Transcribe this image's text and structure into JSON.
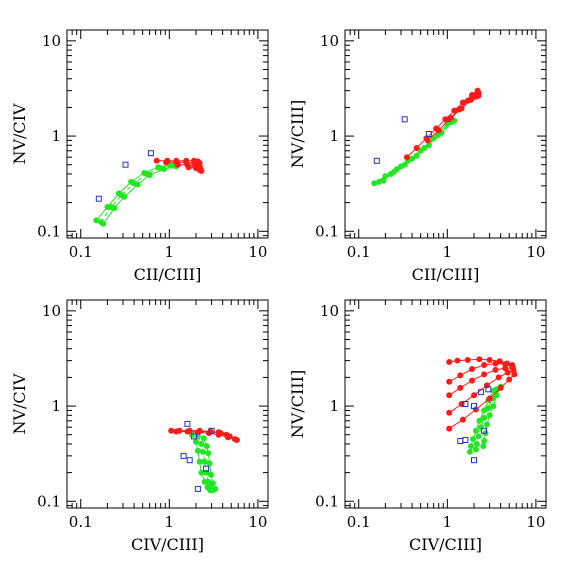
{
  "chart_data": [
    {
      "type": "scatter",
      "xlabel": "CII/CIII]",
      "ylabel": "NV/CIV",
      "xscale": "log",
      "yscale": "log",
      "xlim": [
        0.07,
        13
      ],
      "ylim": [
        0.085,
        13
      ],
      "xticks": [
        {
          "v": 0.1,
          "label": "0.1"
        },
        {
          "v": 1,
          "label": "1"
        },
        {
          "v": 10,
          "label": "10"
        }
      ],
      "yticks": [
        {
          "v": 0.1,
          "label": "0.1"
        },
        {
          "v": 1,
          "label": "1"
        },
        {
          "v": 10,
          "label": "10"
        }
      ],
      "observed": [
        [
          0.16,
          0.22
        ],
        [
          0.32,
          0.5
        ],
        [
          0.62,
          0.66
        ]
      ],
      "red_tracks": [
        [
          [
            0.72,
            0.55
          ],
          [
            0.95,
            0.55
          ],
          [
            1.2,
            0.55
          ],
          [
            1.55,
            0.55
          ],
          [
            1.9,
            0.55
          ],
          [
            2.1,
            0.54
          ],
          [
            2.2,
            0.52
          ]
        ],
        [
          [
            0.92,
            0.53
          ],
          [
            1.2,
            0.53
          ],
          [
            1.55,
            0.53
          ],
          [
            1.9,
            0.52
          ],
          [
            2.1,
            0.5
          ],
          [
            2.2,
            0.48
          ]
        ],
        [
          [
            1.25,
            0.5
          ],
          [
            1.6,
            0.5
          ],
          [
            1.95,
            0.49
          ],
          [
            2.15,
            0.47
          ],
          [
            2.25,
            0.45
          ]
        ],
        [
          [
            1.65,
            0.47
          ],
          [
            2.0,
            0.46
          ],
          [
            2.2,
            0.44
          ],
          [
            2.3,
            0.43
          ]
        ]
      ],
      "green_tracks": [
        [
          [
            0.15,
            0.13
          ],
          [
            0.2,
            0.18
          ],
          [
            0.27,
            0.25
          ],
          [
            0.37,
            0.33
          ],
          [
            0.52,
            0.41
          ],
          [
            0.75,
            0.47
          ],
          [
            1.0,
            0.5
          ]
        ],
        [
          [
            0.17,
            0.125
          ],
          [
            0.22,
            0.18
          ],
          [
            0.29,
            0.24
          ],
          [
            0.4,
            0.32
          ],
          [
            0.56,
            0.4
          ],
          [
            0.8,
            0.46
          ],
          [
            1.1,
            0.49
          ]
        ],
        [
          [
            0.18,
            0.12
          ],
          [
            0.24,
            0.175
          ],
          [
            0.31,
            0.23
          ],
          [
            0.44,
            0.31
          ],
          [
            0.6,
            0.39
          ],
          [
            0.87,
            0.45
          ],
          [
            1.2,
            0.48
          ]
        ]
      ]
    },
    {
      "type": "scatter",
      "xlabel": "CII/CIII]",
      "ylabel": "NV/CIII]",
      "xscale": "log",
      "yscale": "log",
      "xlim": [
        0.07,
        13
      ],
      "ylim": [
        0.085,
        13
      ],
      "xticks": [
        {
          "v": 0.1,
          "label": "0.1"
        },
        {
          "v": 1,
          "label": "1"
        },
        {
          "v": 10,
          "label": "10"
        }
      ],
      "yticks": [
        {
          "v": 0.1,
          "label": "0.1"
        },
        {
          "v": 1,
          "label": "1"
        },
        {
          "v": 10,
          "label": "10"
        }
      ],
      "observed": [
        [
          0.16,
          0.55
        ],
        [
          0.33,
          1.5
        ],
        [
          0.62,
          1.05
        ]
      ],
      "red_tracks": [
        [
          [
            0.35,
            0.6
          ],
          [
            0.45,
            0.75
          ],
          [
            0.58,
            0.95
          ],
          [
            0.75,
            1.2
          ],
          [
            0.95,
            1.5
          ],
          [
            1.2,
            1.85
          ],
          [
            1.5,
            2.25
          ],
          [
            1.9,
            2.7
          ],
          [
            2.2,
            3.0
          ]
        ],
        [
          [
            0.6,
            0.9
          ],
          [
            0.8,
            1.15
          ],
          [
            1.05,
            1.5
          ],
          [
            1.35,
            1.9
          ],
          [
            1.7,
            2.35
          ],
          [
            2.05,
            2.7
          ],
          [
            2.25,
            2.85
          ]
        ],
        [
          [
            1.1,
            1.55
          ],
          [
            1.45,
            1.95
          ],
          [
            1.85,
            2.4
          ],
          [
            2.2,
            2.65
          ]
        ],
        [
          [
            1.9,
            2.5
          ],
          [
            2.1,
            2.6
          ],
          [
            2.25,
            2.65
          ]
        ]
      ],
      "green_tracks": [
        [
          [
            0.15,
            0.32
          ],
          [
            0.2,
            0.38
          ],
          [
            0.27,
            0.45
          ],
          [
            0.36,
            0.55
          ],
          [
            0.5,
            0.7
          ],
          [
            0.7,
            0.95
          ],
          [
            1.0,
            1.35
          ]
        ],
        [
          [
            0.17,
            0.33
          ],
          [
            0.23,
            0.4
          ],
          [
            0.3,
            0.48
          ],
          [
            0.4,
            0.58
          ],
          [
            0.55,
            0.75
          ],
          [
            0.78,
            1.02
          ],
          [
            1.1,
            1.4
          ]
        ],
        [
          [
            0.19,
            0.34
          ],
          [
            0.25,
            0.42
          ],
          [
            0.33,
            0.5
          ],
          [
            0.45,
            0.62
          ],
          [
            0.62,
            0.8
          ],
          [
            0.86,
            1.08
          ],
          [
            1.2,
            1.45
          ]
        ]
      ]
    },
    {
      "type": "scatter",
      "xlabel": "CIV/CIII]",
      "ylabel": "NV/CIV",
      "xscale": "log",
      "yscale": "log",
      "xlim": [
        0.07,
        13
      ],
      "ylim": [
        0.085,
        13
      ],
      "xticks": [
        {
          "v": 0.1,
          "label": "0.1"
        },
        {
          "v": 1,
          "label": "1"
        },
        {
          "v": 10,
          "label": "10"
        }
      ],
      "yticks": [
        {
          "v": 0.1,
          "label": "0.1"
        },
        {
          "v": 1,
          "label": "1"
        },
        {
          "v": 10,
          "label": "10"
        }
      ],
      "observed": [
        [
          1.6,
          0.65
        ],
        [
          1.9,
          0.48
        ],
        [
          2.6,
          0.22
        ],
        [
          1.45,
          0.3
        ],
        [
          1.7,
          0.27
        ],
        [
          2.1,
          0.135
        ],
        [
          3.0,
          0.55
        ]
      ],
      "red_tracks": [
        [
          [
            1.05,
            0.55
          ],
          [
            1.3,
            0.55
          ],
          [
            1.7,
            0.55
          ],
          [
            2.2,
            0.55
          ],
          [
            2.9,
            0.54
          ],
          [
            3.8,
            0.52
          ],
          [
            4.8,
            0.48
          ],
          [
            5.8,
            0.44
          ]
        ],
        [
          [
            1.2,
            0.54
          ],
          [
            1.6,
            0.54
          ],
          [
            2.1,
            0.53
          ],
          [
            2.8,
            0.52
          ],
          [
            3.6,
            0.5
          ],
          [
            4.6,
            0.47
          ],
          [
            5.5,
            0.45
          ]
        ],
        [
          [
            2.2,
            0.54
          ],
          [
            2.9,
            0.54
          ],
          [
            3.6,
            0.53
          ],
          [
            4.4,
            0.5
          ]
        ]
      ],
      "green_tracks": [
        [
          [
            1.8,
            0.5
          ],
          [
            2.0,
            0.42
          ],
          [
            2.1,
            0.34
          ],
          [
            2.2,
            0.26
          ],
          [
            2.3,
            0.2
          ],
          [
            2.5,
            0.16
          ],
          [
            2.7,
            0.14
          ],
          [
            2.9,
            0.13
          ]
        ],
        [
          [
            2.1,
            0.48
          ],
          [
            2.3,
            0.4
          ],
          [
            2.4,
            0.33
          ],
          [
            2.5,
            0.26
          ],
          [
            2.6,
            0.2
          ],
          [
            2.75,
            0.16
          ],
          [
            2.9,
            0.14
          ],
          [
            3.1,
            0.13
          ]
        ],
        [
          [
            2.45,
            0.46
          ],
          [
            2.65,
            0.38
          ],
          [
            2.75,
            0.32
          ],
          [
            2.85,
            0.25
          ],
          [
            2.95,
            0.19
          ],
          [
            3.1,
            0.155
          ],
          [
            3.3,
            0.135
          ]
        ]
      ]
    },
    {
      "type": "scatter",
      "xlabel": "CIV/CIII]",
      "ylabel": "NV/CIII]",
      "xscale": "log",
      "yscale": "log",
      "xlim": [
        0.07,
        13
      ],
      "ylim": [
        0.085,
        13
      ],
      "xticks": [
        {
          "v": 0.1,
          "label": "0.1"
        },
        {
          "v": 1,
          "label": "1"
        },
        {
          "v": 10,
          "label": "10"
        }
      ],
      "yticks": [
        {
          "v": 0.1,
          "label": "0.1"
        },
        {
          "v": 1,
          "label": "1"
        },
        {
          "v": 10,
          "label": "10"
        }
      ],
      "observed": [
        [
          1.6,
          1.05
        ],
        [
          2.0,
          1.0
        ],
        [
          2.4,
          1.4
        ],
        [
          2.9,
          1.5
        ],
        [
          2.6,
          0.55
        ],
        [
          1.4,
          0.43
        ],
        [
          1.6,
          0.44
        ],
        [
          2.0,
          0.27
        ]
      ],
      "red_tracks": [
        [
          [
            1.05,
            2.9
          ],
          [
            1.3,
            3.0
          ],
          [
            1.7,
            3.05
          ],
          [
            2.3,
            3.1
          ],
          [
            3.0,
            3.05
          ],
          [
            3.9,
            2.95
          ],
          [
            4.7,
            2.8
          ],
          [
            5.4,
            2.7
          ]
        ],
        [
          [
            1.05,
            1.8
          ],
          [
            1.4,
            2.1
          ],
          [
            1.9,
            2.45
          ],
          [
            2.6,
            2.7
          ],
          [
            3.5,
            2.8
          ],
          [
            4.5,
            2.75
          ],
          [
            5.4,
            2.6
          ]
        ],
        [
          [
            1.05,
            1.3
          ],
          [
            1.4,
            1.55
          ],
          [
            1.9,
            1.85
          ],
          [
            2.6,
            2.15
          ],
          [
            3.5,
            2.4
          ],
          [
            4.5,
            2.5
          ],
          [
            5.5,
            2.5
          ]
        ],
        [
          [
            1.05,
            0.85
          ],
          [
            1.45,
            1.05
          ],
          [
            2.0,
            1.3
          ],
          [
            2.8,
            1.65
          ],
          [
            3.8,
            2.0
          ],
          [
            4.8,
            2.25
          ],
          [
            5.6,
            2.35
          ]
        ],
        [
          [
            1.05,
            0.58
          ],
          [
            1.5,
            0.72
          ],
          [
            2.1,
            0.92
          ],
          [
            3.0,
            1.2
          ],
          [
            4.0,
            1.55
          ],
          [
            5.0,
            1.9
          ],
          [
            5.7,
            2.15
          ]
        ]
      ],
      "green_tracks": [
        [
          [
            3.3,
            1.45
          ],
          [
            2.9,
            1.15
          ],
          [
            2.6,
            0.9
          ],
          [
            2.3,
            0.7
          ],
          [
            2.1,
            0.55
          ],
          [
            1.95,
            0.45
          ],
          [
            1.85,
            0.38
          ],
          [
            1.8,
            0.33
          ]
        ],
        [
          [
            3.6,
            1.5
          ],
          [
            3.2,
            1.2
          ],
          [
            2.9,
            0.95
          ],
          [
            2.6,
            0.75
          ],
          [
            2.4,
            0.6
          ],
          [
            2.25,
            0.48
          ],
          [
            2.15,
            0.4
          ],
          [
            2.1,
            0.35
          ]
        ],
        [
          [
            4.0,
            1.6
          ],
          [
            3.6,
            1.3
          ],
          [
            3.3,
            1.0
          ],
          [
            3.0,
            0.8
          ],
          [
            2.8,
            0.64
          ],
          [
            2.7,
            0.52
          ],
          [
            2.6,
            0.43
          ],
          [
            2.55,
            0.38
          ]
        ]
      ]
    }
  ],
  "colors": {
    "model_red": "#ff1a1a",
    "model_green": "#22e622",
    "observed": "#2233cc",
    "axis": "#000000"
  }
}
